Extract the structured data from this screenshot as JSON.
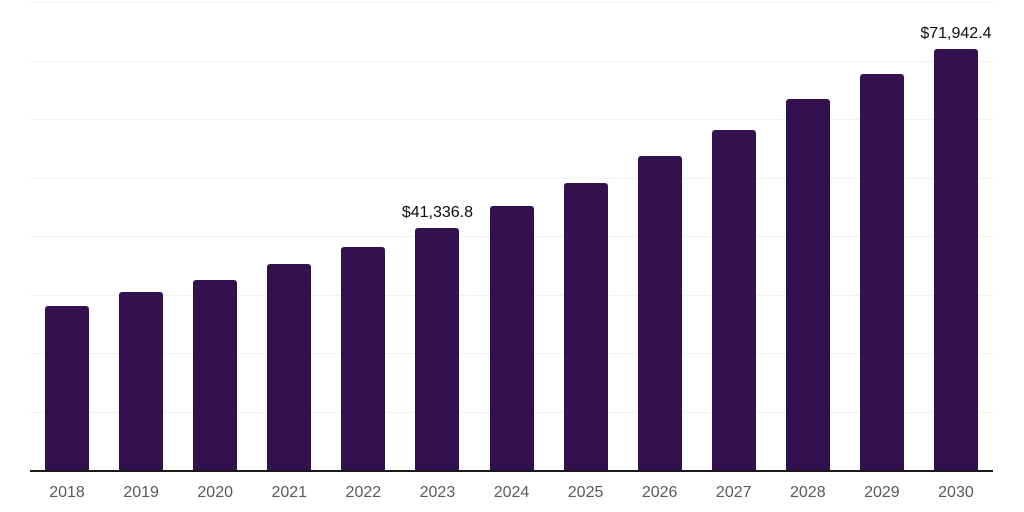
{
  "chart_data": {
    "type": "bar",
    "title": "",
    "xlabel": "",
    "ylabel": "",
    "categories": [
      "2018",
      "2019",
      "2020",
      "2021",
      "2022",
      "2023",
      "2024",
      "2025",
      "2026",
      "2027",
      "2028",
      "2029",
      "2030"
    ],
    "values": [
      28100,
      30500,
      32500,
      35200,
      38100,
      41336.8,
      45100,
      49100,
      53600,
      58100,
      63400,
      67700,
      71942.4
    ],
    "data_labels": {
      "2023": "$41,336.8",
      "2030": "$71,942.4"
    },
    "ylim": [
      0,
      80000
    ],
    "gridline_step": 10000,
    "grid": "horizontal-only",
    "y_axis_tick_labels_visible": false,
    "legend": "none"
  },
  "colors": {
    "bar": "#33114f",
    "gridline": "#f2f2f2",
    "axis_line": "#1a1a1a",
    "x_tick_label": "#595959",
    "data_label": "#0d0d0d",
    "background": "#ffffff"
  }
}
